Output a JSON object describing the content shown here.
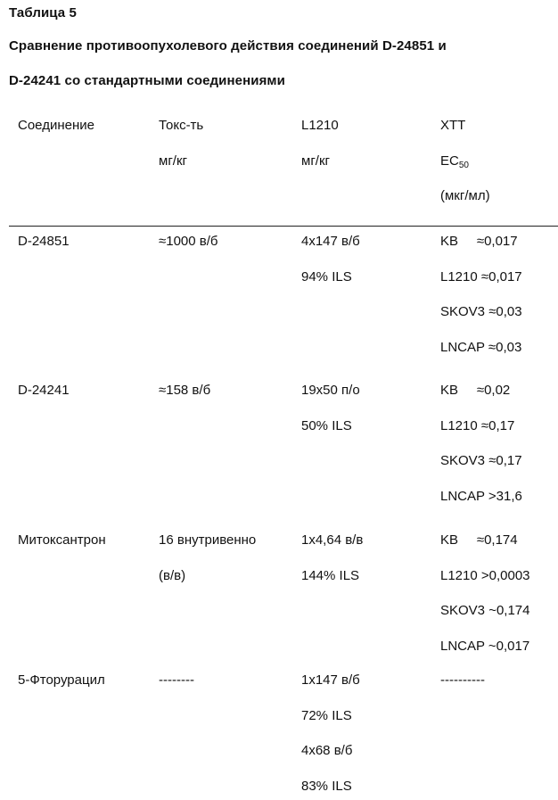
{
  "doc": {
    "table_label": "Таблица 5",
    "title_line1": "Сравнение противоопухолевого действия соединений D-24851 и",
    "title_line2": "D-24241 со стандартными соединениями"
  },
  "header": {
    "compound": "Соединение",
    "tox": "Токс-ть",
    "tox_unit": "мг/кг",
    "l1210": "L1210",
    "l1210_unit": "мг/кг",
    "xtt": "XTT",
    "ec": "EC",
    "ec_sub": "50",
    "xtt_unit": "(мкг/мл)"
  },
  "rows": [
    {
      "compound": "D-24851",
      "tox": [
        "≈1000 в/б"
      ],
      "l1210": [
        "4x147 в/б",
        "94% ILS"
      ],
      "xtt": [
        {
          "line": "KB     ≈0,017"
        },
        {
          "line": "L1210 ≈0,017"
        },
        {
          "line": "SKOV3 ≈0,03"
        },
        {
          "line": "LNCAP ≈0,03"
        }
      ]
    },
    {
      "compound": "D-24241",
      "tox": [
        "≈158 в/б"
      ],
      "l1210": [
        "19x50 п/о",
        "50% ILS"
      ],
      "xtt": [
        {
          "line": "KB     ≈0,02"
        },
        {
          "line": "L1210 ≈0,17"
        },
        {
          "line": "SKOV3 ≈0,17"
        },
        {
          "line": "LNCAP >31,6"
        }
      ]
    },
    {
      "compound": "Митоксантрон",
      "tox": [
        "16 внутривенно",
        "(в/в)"
      ],
      "l1210": [
        "1x4,64 в/в",
        "144% ILS"
      ],
      "xtt": [
        {
          "line": "KB     ≈0,174"
        },
        {
          "line": "L1210 >0,0003"
        },
        {
          "line": "SKOV3 ~0,174"
        },
        {
          "line": "LNCAP ~0,017"
        }
      ]
    },
    {
      "compound": "5-Фторурацил",
      "tox": [
        "--------"
      ],
      "l1210": [
        "1x147 в/б",
        "72% ILS",
        "4x68 в/б",
        "83% ILS"
      ],
      "xtt": [
        {
          "line": "----------"
        }
      ]
    }
  ]
}
